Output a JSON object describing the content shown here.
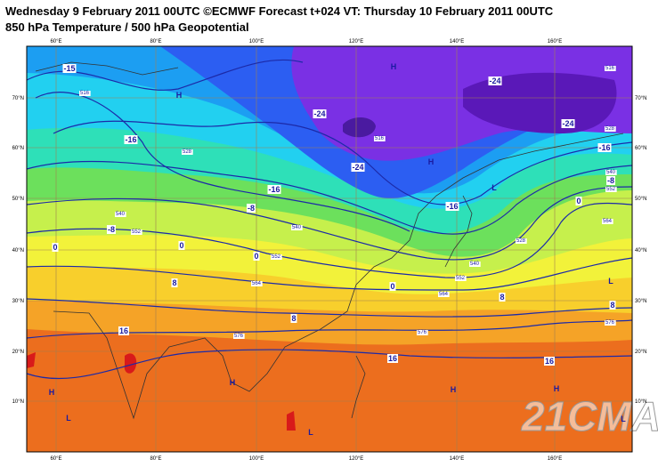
{
  "header": {
    "title": "Wednesday 9 February 2011 00UTC ©ECMWF Forecast t+024 VT: Thursday 10 February 2011 00UTC",
    "subtitle": "850 hPa Temperature / 500 hPa Geopotential"
  },
  "map": {
    "longitudes": [
      "60°E",
      "80°E",
      "100°E",
      "120°E",
      "140°E",
      "160°E"
    ],
    "latitudes": [
      "70°N",
      "60°N",
      "50°N",
      "40°N",
      "30°N",
      "20°N",
      "10°N"
    ],
    "temperature_labels": [
      "-15",
      "-16",
      "-24",
      "-24",
      "-24",
      "-24",
      "-16",
      "-16",
      "-16",
      "-8",
      "-8",
      "-8",
      "0",
      "0",
      "0",
      "0",
      "0",
      "8",
      "8",
      "8",
      "8",
      "16",
      "16",
      "16"
    ],
    "height_labels": [
      "516",
      "528",
      "540",
      "552",
      "564",
      "576",
      "576",
      "576",
      "564",
      "552",
      "540",
      "528",
      "516",
      "528",
      "540",
      "552",
      "564",
      "516",
      "540",
      "552"
    ],
    "centers": [
      "H",
      "H",
      "H",
      "L",
      "L",
      "H",
      "L",
      "H",
      "L",
      "H",
      "H",
      "L"
    ],
    "watermark": "21CMA"
  }
}
